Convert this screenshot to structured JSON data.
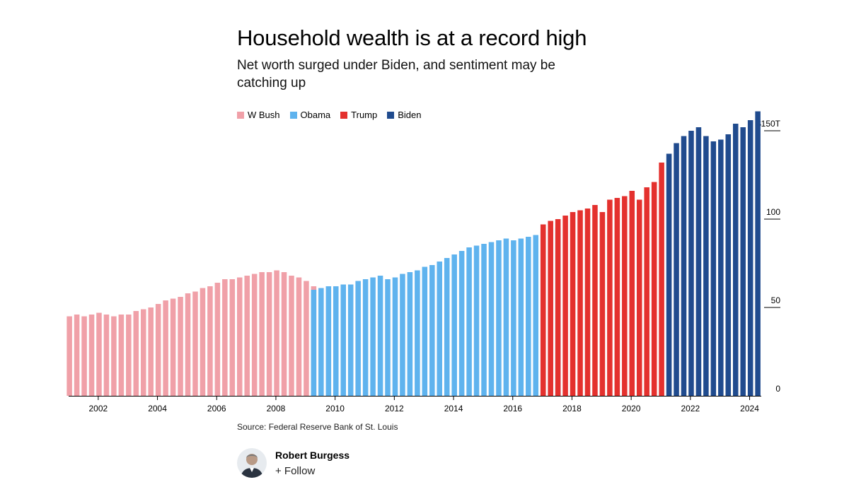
{
  "header": {
    "title": "Household wealth is at a record high",
    "subtitle": "Net worth surged under Biden, and sentiment may be catching up"
  },
  "footer": {
    "source": "Source: Federal Reserve Bank of St. Louis"
  },
  "author": {
    "name": "Robert Burgess",
    "follow_label": "+ Follow"
  },
  "chart_data": {
    "type": "bar",
    "title": "Household wealth is at a record high",
    "subtitle": "Net worth surged under Biden, and sentiment may be catching up",
    "xlabel": "",
    "ylabel": "",
    "ylim": [
      0,
      160
    ],
    "yticks": [
      {
        "value": 0,
        "label": "0"
      },
      {
        "value": 50,
        "label": "50"
      },
      {
        "value": 100,
        "label": "100"
      },
      {
        "value": 150,
        "label": "$150T"
      }
    ],
    "xticks": [
      "2002",
      "2004",
      "2006",
      "2008",
      "2010",
      "2012",
      "2014",
      "2016",
      "2018",
      "2020",
      "2022",
      "2024"
    ],
    "xrange": [
      2001.0,
      2024.25
    ],
    "grid": false,
    "legend_position": "top-left",
    "series": [
      {
        "name": "W Bush",
        "color": "#f0a0a8",
        "start": 2001.0,
        "values": [
          45,
          46,
          45,
          46,
          47,
          46,
          45,
          46,
          46,
          48,
          49,
          50,
          52,
          54,
          55,
          56,
          58,
          59,
          61,
          62,
          64,
          66,
          66,
          67,
          68,
          69,
          70,
          70,
          71,
          70,
          68,
          67,
          65,
          62
        ]
      },
      {
        "name": "Obama",
        "color": "#5fb3ee",
        "start": 2009.25,
        "values": [
          60,
          61,
          62,
          62,
          63,
          63,
          65,
          66,
          67,
          68,
          66,
          67,
          69,
          70,
          71,
          73,
          74,
          76,
          78,
          80,
          82,
          84,
          85,
          86,
          87,
          88,
          89,
          88,
          89,
          90,
          91,
          93,
          94,
          95
        ]
      },
      {
        "name": "Trump",
        "color": "#e4312e",
        "start": 2017.0,
        "values": [
          97,
          99,
          100,
          102,
          104,
          105,
          106,
          108,
          104,
          111,
          112,
          113,
          116,
          111,
          118,
          121,
          132
        ]
      },
      {
        "name": "Biden",
        "color": "#204b8e",
        "start": 2021.25,
        "values": [
          137,
          143,
          147,
          150,
          152,
          147,
          144,
          145,
          148,
          154,
          152,
          156,
          161
        ]
      }
    ]
  }
}
